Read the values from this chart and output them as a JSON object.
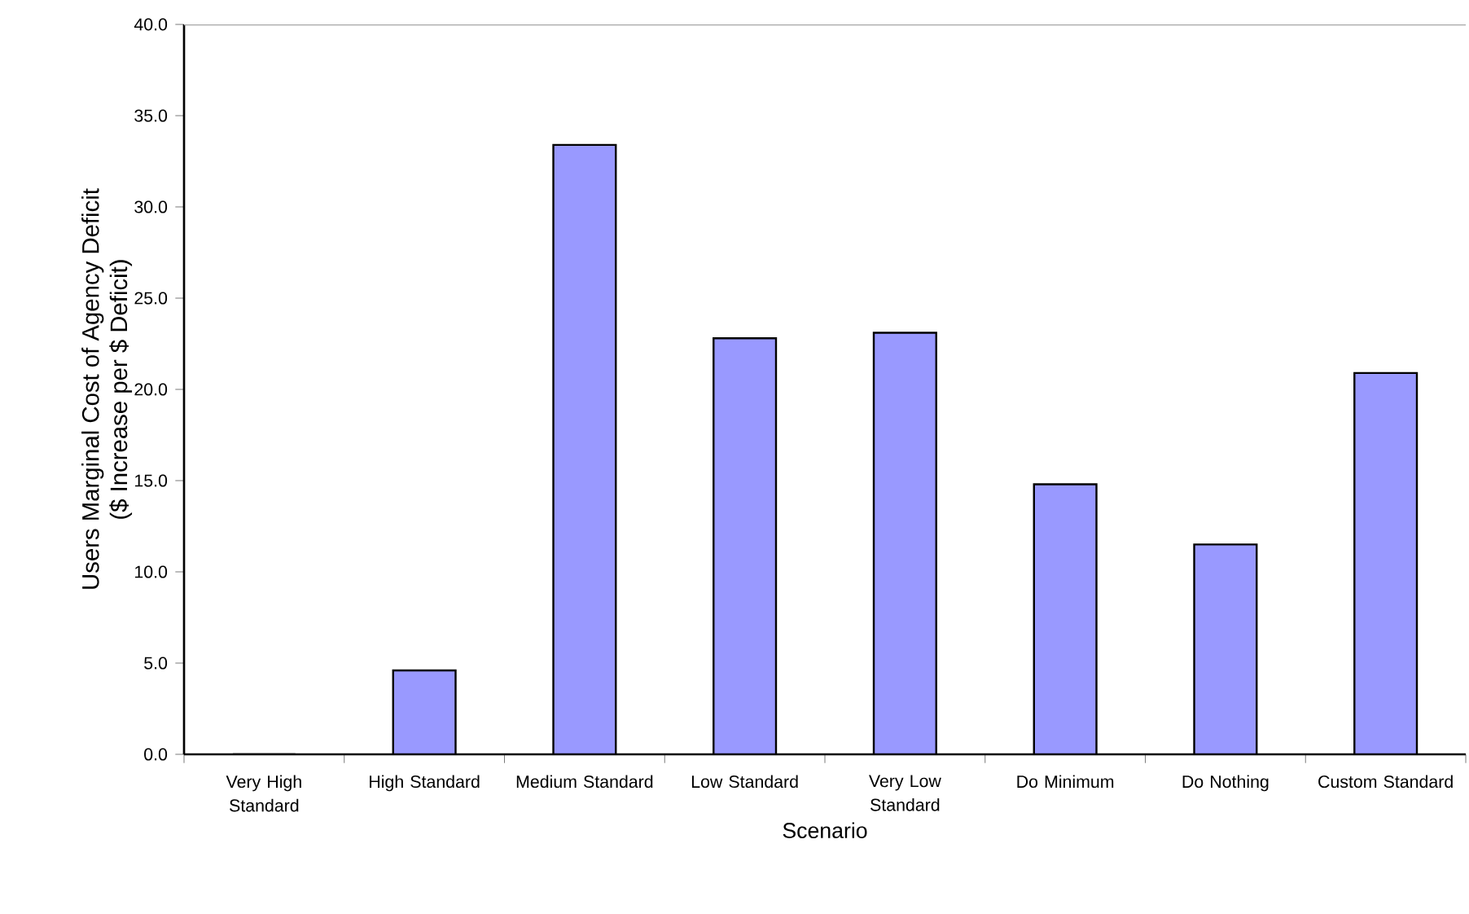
{
  "chart_data": {
    "type": "bar",
    "xlabel": "Scenario",
    "ylabel": "Users Marginal Cost of Agency Deficit\n($ Increase per $ Deficit)",
    "categories": [
      "Very High Standard",
      "High Standard",
      "Medium Standard",
      "Low Standard",
      "Very Low Standard",
      "Do Minimum",
      "Do Nothing",
      "Custom Standard"
    ],
    "values": [
      0,
      4.6,
      33.4,
      22.8,
      23.1,
      14.8,
      11.5,
      20.9
    ],
    "color": "#9999ff",
    "ylim": [
      0,
      40
    ],
    "yticks": [
      {
        "value": 0,
        "label": "0.0"
      },
      {
        "value": 5,
        "label": "5.0"
      },
      {
        "value": 10,
        "label": "10.0"
      },
      {
        "value": 15,
        "label": "15.0"
      },
      {
        "value": 20,
        "label": "20.0"
      },
      {
        "value": 25,
        "label": "25.0"
      },
      {
        "value": 30,
        "label": "30.0"
      },
      {
        "value": 35,
        "label": "35.0"
      },
      {
        "value": 40,
        "label": "40.0"
      }
    ],
    "grid": false
  }
}
